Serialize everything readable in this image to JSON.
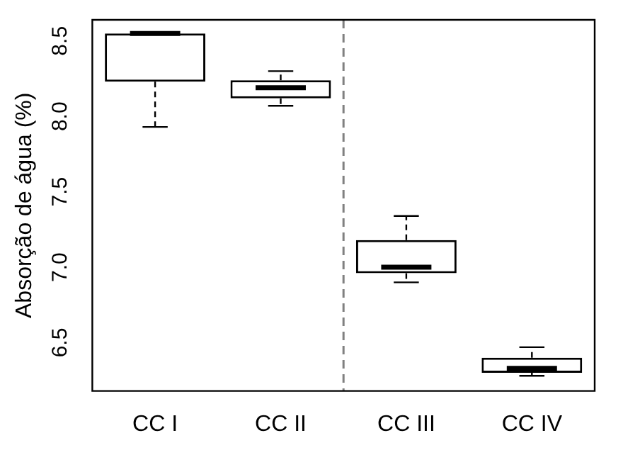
{
  "chart_data": {
    "type": "box",
    "ylabel": "Absorção de água (%)",
    "categories": [
      "CC I",
      "CC II",
      "CC III",
      "CC IV"
    ],
    "boxes": [
      {
        "low": 7.93,
        "q1": 8.23,
        "median": 8.55,
        "q3": 8.55,
        "high": 8.55
      },
      {
        "low": 8.07,
        "q1": 8.12,
        "median": 8.19,
        "q3": 8.24,
        "high": 8.3
      },
      {
        "low": 6.9,
        "q1": 6.96,
        "median": 7.0,
        "q3": 7.18,
        "high": 7.34
      },
      {
        "low": 6.28,
        "q1": 6.3,
        "median": 6.33,
        "q3": 6.4,
        "high": 6.47
      }
    ],
    "ylim": [
      6.18,
      8.64
    ],
    "yticks": [
      6.5,
      {
        "value": 7,
        "label": "7.0"
      },
      7.5,
      {
        "value": 8,
        "label": "8.0"
      },
      8.5
    ],
    "grid": false,
    "legend": false
  }
}
